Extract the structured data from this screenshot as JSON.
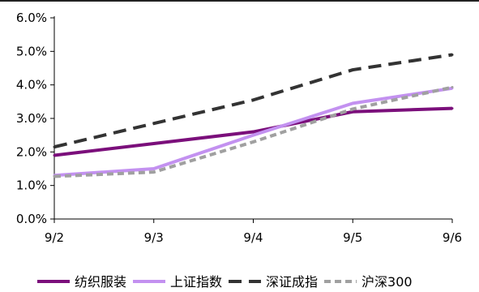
{
  "chart_data": {
    "type": "line",
    "categories": [
      "9/2",
      "9/3",
      "9/4",
      "9/5",
      "9/6"
    ],
    "ylim": [
      0,
      6
    ],
    "y_ticks": [
      "0.0%",
      "1.0%",
      "2.0%",
      "3.0%",
      "4.0%",
      "5.0%",
      "6.0%"
    ],
    "y_tick_values": [
      0,
      1,
      2,
      3,
      4,
      5,
      6
    ],
    "grid": false,
    "legend_position": "bottom",
    "series": [
      {
        "name": "纺织服装",
        "values": [
          1.9,
          2.25,
          2.6,
          3.2,
          3.3
        ],
        "color": "#7b0f7b",
        "dash": "solid"
      },
      {
        "name": "上证指数",
        "values": [
          1.3,
          1.5,
          2.5,
          3.45,
          3.9
        ],
        "color": "#c391f0",
        "dash": "solid"
      },
      {
        "name": "深证成指",
        "values": [
          2.15,
          2.85,
          3.55,
          4.45,
          4.9
        ],
        "color": "#333333",
        "dash": "long"
      },
      {
        "name": "沪深300",
        "values": [
          1.27,
          1.4,
          2.3,
          3.28,
          3.93
        ],
        "color": "#a0a0a0",
        "dash": "short"
      }
    ]
  }
}
